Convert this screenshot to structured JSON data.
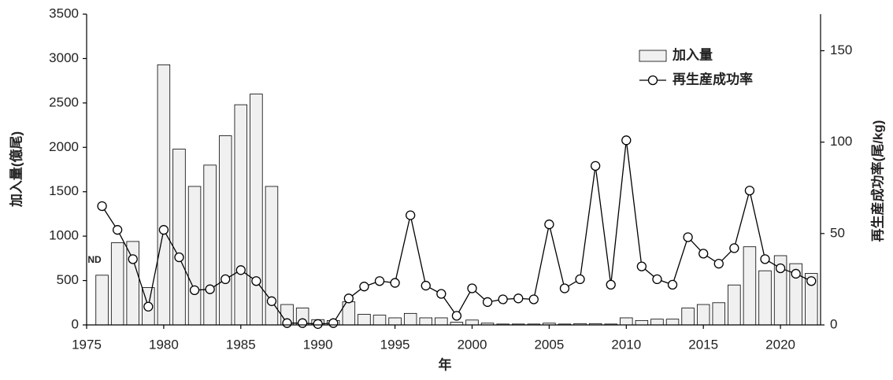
{
  "chart_data": {
    "type": "combo",
    "x": [
      1976,
      1977,
      1978,
      1979,
      1980,
      1981,
      1982,
      1983,
      1984,
      1985,
      1986,
      1987,
      1988,
      1989,
      1990,
      1991,
      1992,
      1993,
      1994,
      1995,
      1996,
      1997,
      1998,
      1999,
      2000,
      2001,
      2002,
      2003,
      2004,
      2005,
      2006,
      2007,
      2008,
      2009,
      2010,
      2011,
      2012,
      2013,
      2014,
      2015,
      2016,
      2017,
      2018,
      2019,
      2020,
      2021,
      2022
    ],
    "series": [
      {
        "name": "加入量",
        "type": "bar",
        "color": "#f0f0f0",
        "values": [
          560,
          925,
          940,
          420,
          2930,
          1980,
          1560,
          1800,
          2130,
          2480,
          2600,
          1560,
          230,
          190,
          60,
          50,
          260,
          120,
          110,
          80,
          130,
          80,
          80,
          30,
          55,
          20,
          10,
          10,
          10,
          20,
          10,
          15,
          15,
          10,
          80,
          50,
          65,
          65,
          190,
          230,
          250,
          450,
          880,
          610,
          780,
          690,
          580
        ]
      },
      {
        "name": "再生産成功率",
        "type": "line",
        "axis": "y2",
        "color": "#000000",
        "values": [
          65,
          52,
          36,
          10,
          52,
          37,
          19,
          19.5,
          25,
          30,
          24,
          13,
          1,
          1,
          0.5,
          1,
          14.5,
          21,
          24,
          23,
          60,
          21.5,
          17,
          5,
          20,
          12.5,
          14,
          14.5,
          14,
          55,
          20,
          25,
          87,
          22,
          101,
          32,
          25,
          22,
          48,
          39,
          33.5,
          42,
          73.5,
          36,
          31,
          28,
          24
        ]
      }
    ],
    "xlabel": "年",
    "ylabel": "加入量(億尾)",
    "y2label": "再生産成功率(尾/kg)",
    "annotations": [
      {
        "text": "ND"
      }
    ],
    "xlim": [
      1975,
      2022.6
    ],
    "xticks": [
      1975,
      1980,
      1985,
      1990,
      1995,
      2000,
      2005,
      2010,
      2015,
      2020
    ],
    "ylim": [
      0,
      3500
    ],
    "yticks": [
      0,
      500,
      1000,
      1500,
      2000,
      2500,
      3000,
      3500
    ],
    "y2lim": [
      0,
      170
    ],
    "y2ticks": [
      0,
      50,
      100,
      150
    ],
    "legend": "upper-right"
  }
}
